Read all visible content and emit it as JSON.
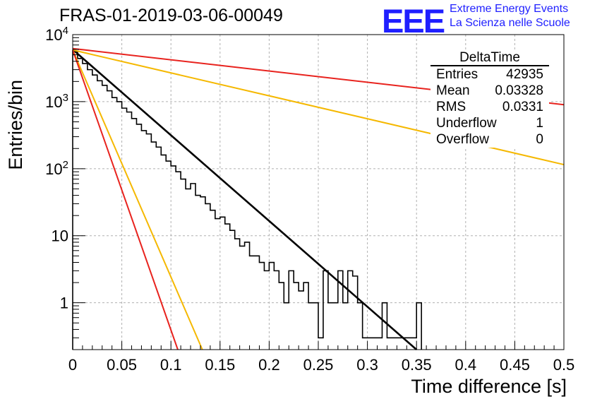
{
  "title": "FRAS-01-2019-03-06-00049",
  "logo": {
    "mark": "EEE",
    "line1": "Extreme Energy Events",
    "line2": "La Scienza nelle Scuole",
    "color": "#1f1fff"
  },
  "stats": {
    "name": "DeltaTime",
    "rows": [
      {
        "label": "Entries",
        "value": "42935"
      },
      {
        "label": "Mean",
        "value": "0.03328"
      },
      {
        "label": "RMS",
        "value": "0.0331"
      },
      {
        "label": "Underflow",
        "value": "1"
      },
      {
        "label": "Overflow",
        "value": "0"
      }
    ]
  },
  "chart_data": {
    "type": "histogram",
    "title": "FRAS-01-2019-03-06-00049",
    "xlabel": "Time difference [s]",
    "ylabel": "Entries/bin",
    "xlim": [
      0,
      0.5
    ],
    "ylim": [
      0.2,
      10000
    ],
    "yscale": "log",
    "grid": true,
    "xticks": [
      "0",
      "0.05",
      "0.1",
      "0.15",
      "0.2",
      "0.25",
      "0.3",
      "0.35",
      "0.4",
      "0.45",
      "0.5"
    ],
    "yticks": [
      {
        "value": 1,
        "label": "1"
      },
      {
        "value": 10,
        "label": "10"
      },
      {
        "value": 100,
        "label": "10^2"
      },
      {
        "value": 1000,
        "label": "10^3"
      },
      {
        "value": 10000,
        "label": "10^4"
      }
    ],
    "bin_width": 0.005,
    "histogram": [
      5600,
      4400,
      3700,
      3000,
      2500,
      2050,
      1750,
      1450,
      1150,
      1000,
      800,
      700,
      560,
      460,
      370,
      330,
      250,
      210,
      160,
      130,
      110,
      90,
      70,
      50,
      60,
      40,
      38,
      30,
      24,
      18,
      19,
      15,
      12,
      9,
      7,
      8,
      5,
      5,
      4,
      3,
      4,
      3,
      2,
      1,
      3,
      2,
      1.5,
      2,
      1,
      1,
      0.3,
      3,
      1,
      1,
      3,
      1,
      3,
      2.5,
      1,
      0.3,
      0.3,
      0.3,
      0.3,
      1,
      0.3,
      0.3,
      0.3,
      0.3,
      0.3,
      0.3,
      1
    ],
    "series": [
      {
        "color": "#000000",
        "points": [
          [
            0,
            6000
          ],
          [
            0.35,
            0.2
          ]
        ]
      },
      {
        "color": "#e8231e",
        "points": [
          [
            0,
            6200
          ],
          [
            0.5,
            900
          ]
        ]
      },
      {
        "color": "#f5b800",
        "points": [
          [
            0,
            5900
          ],
          [
            0.5,
            115
          ]
        ]
      },
      {
        "color": "#f5b800",
        "points": [
          [
            0,
            5900
          ],
          [
            0.132,
            0.2
          ]
        ]
      },
      {
        "color": "#e8231e",
        "points": [
          [
            0,
            5900
          ],
          [
            0.107,
            0.2
          ]
        ]
      }
    ]
  }
}
